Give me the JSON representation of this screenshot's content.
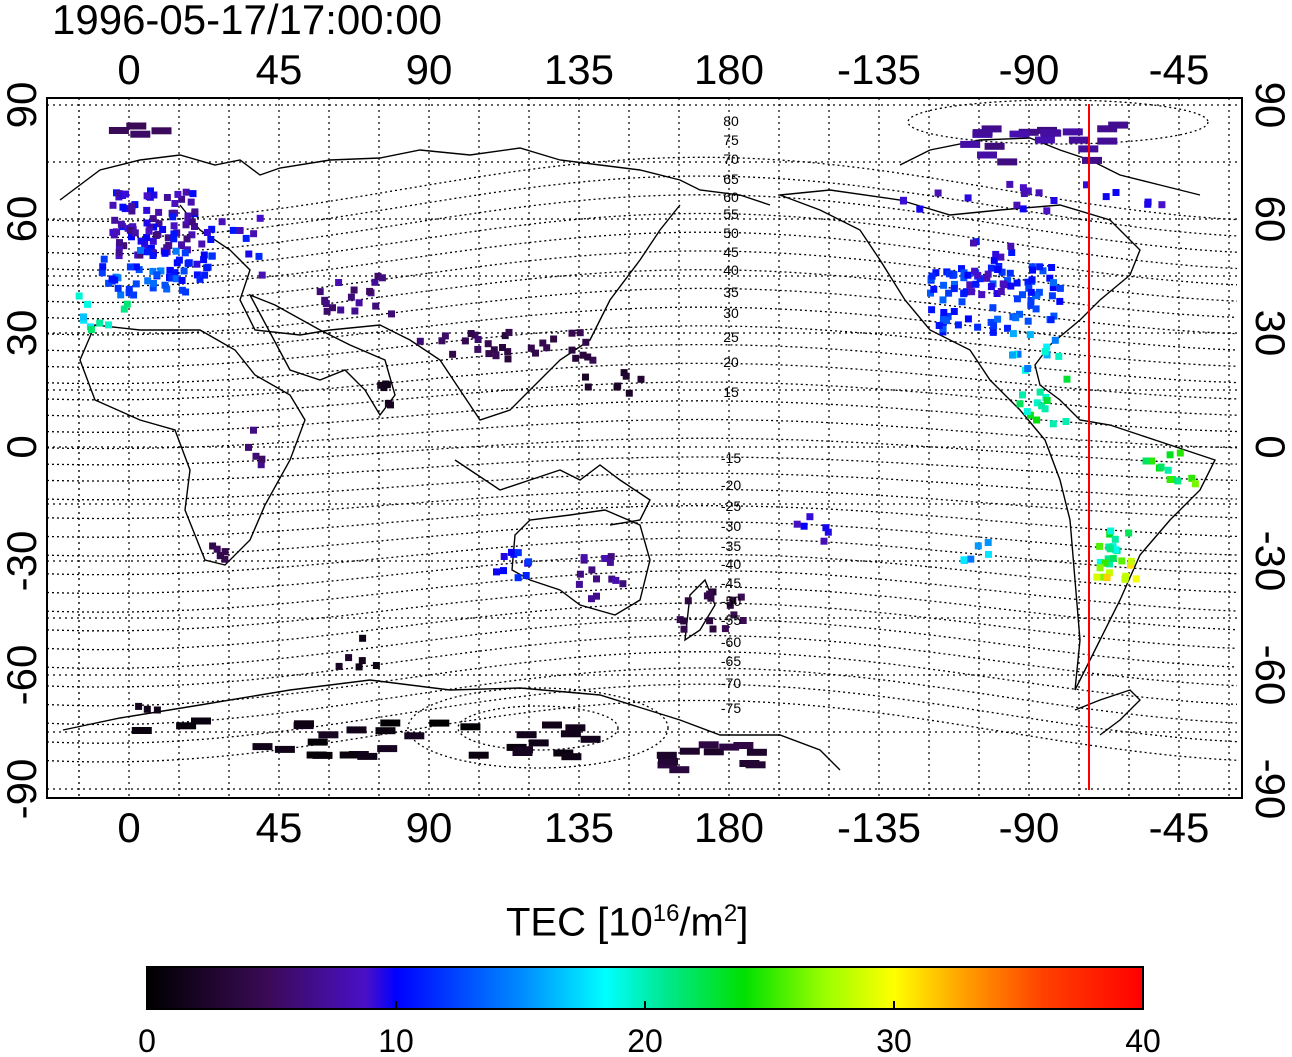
{
  "title": "1996-05-17/17:00:00",
  "map": {
    "lon_ticks": [
      "0",
      "45",
      "90",
      "135",
      "180",
      "-135",
      "-90",
      "-45"
    ],
    "lat_ticks": [
      "90",
      "60",
      "30",
      "0",
      "-30",
      "-60",
      "-90"
    ],
    "contour_labels_north": [
      "80",
      "75",
      "70",
      "65",
      "60",
      "55",
      "50",
      "45",
      "40",
      "35",
      "30",
      "25",
      "20",
      "15"
    ],
    "contour_labels_south": [
      "-15",
      "-20",
      "-25",
      "-30",
      "-35",
      "-40",
      "-45",
      "-50",
      "-55",
      "-60",
      "-65",
      "-70",
      "-75"
    ],
    "terminator_lon": -72,
    "colors": {
      "terminator": "#ff0000",
      "background": "#ffffff"
    }
  },
  "colorbar": {
    "title_text": "TEC  [10",
    "title_exp": "16",
    "title_unit": "/m",
    "title_unit_exp": "2",
    "title_close": "]",
    "ticks": [
      "0",
      "10",
      "20",
      "30",
      "40"
    ],
    "min": 0,
    "max": 40
  }
}
